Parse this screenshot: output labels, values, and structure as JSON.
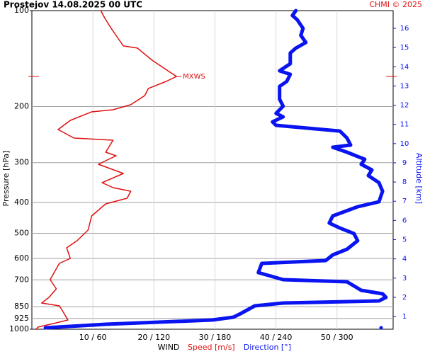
{
  "chart_data": {
    "type": "profile",
    "title": "Prostejov   14.08.2025 00 UTC",
    "credit": "CHMI © 2025",
    "ylabel": "Pressure [hPa]",
    "y2label": "Altitude [km]",
    "xlabel": "WIND",
    "ylim": [
      100,
      1000
    ],
    "ylog": true,
    "yticks": [
      100,
      200,
      300,
      400,
      500,
      600,
      700,
      850,
      925,
      1000
    ],
    "y2lim": [
      0.34,
      16.92
    ],
    "y2ticks": [
      1,
      2,
      3,
      4,
      5,
      6,
      7,
      8,
      9,
      10,
      11,
      12,
      13,
      14,
      15,
      16
    ],
    "xlim": [
      0,
      59.2
    ],
    "x2lim": [
      0,
      355.1
    ],
    "xticks": [
      {
        "value": 10,
        "label": "10 / 60"
      },
      {
        "value": 20,
        "label": "20 / 120"
      },
      {
        "value": 30,
        "label": "30 / 180"
      },
      {
        "value": 40,
        "label": "40 / 240"
      },
      {
        "value": 50,
        "label": "50 / 300"
      }
    ],
    "grid": true,
    "annotation": {
      "text": "MXWS",
      "pressure": 160.9,
      "value": 23.7,
      "color": "#e01010"
    },
    "series": [
      {
        "name": "Speed [m/s]",
        "color": "#e01010",
        "axis": "x",
        "pressure": [
          100,
          105.2,
          113.7,
          122.7,
          129.1,
          131.1,
          143.1,
          154.5,
          160.9,
          166.8,
          175.5,
          184.8,
          197.4,
          204.7,
          207.9,
          221.0,
          236.2,
          251.2,
          255.1,
          278.3,
          285.5,
          303.5,
          324.4,
          346.7,
          359.4,
          368.8,
          388.0,
          404.2,
          441.0,
          488.6,
          527.6,
          555.3,
          599.5,
          621.4,
          698.9,
          746.9,
          794.3,
          827.6,
          844.7,
          893.6,
          935.7,
          955.0,
          984.8,
          1000
        ],
        "values": [
          11.3,
          11.9,
          13.0,
          14.2,
          15.0,
          17.3,
          19.7,
          22.3,
          23.7,
          22.0,
          19.1,
          18.5,
          16.2,
          13.3,
          9.8,
          6.3,
          4.3,
          6.9,
          13.3,
          12.1,
          13.8,
          10.9,
          15.0,
          11.5,
          13.3,
          16.2,
          15.6,
          12.1,
          9.8,
          9.2,
          7.4,
          5.7,
          6.3,
          4.5,
          3.0,
          4.0,
          2.8,
          1.6,
          4.5,
          5.3,
          5.9,
          4.0,
          1.0,
          0.7
        ]
      },
      {
        "name": "Direction [°]",
        "color": "#0a14f0",
        "axis": "x2",
        "pressure": [
          100,
          103.6,
          106.9,
          113.7,
          119.6,
          125.9,
          131.1,
          135.9,
          146.8,
          154.5,
          158.5,
          166.8,
          172.9,
          189.6,
          199.5,
          210.1,
          215.4,
          223.4,
          229.1,
          238.8,
          251.2,
          264.3,
          268.5,
          278.3,
          292.9,
          303.5,
          316.2,
          329.5,
          346.7,
          368.8,
          398.1,
          412.6,
          441.0,
          464.2,
          481.3,
          501.2,
          527.6,
          561.0,
          584.4,
          608.7,
          621.4,
          664.2,
          698.9,
          709.6,
          754.7,
          774.3,
          794.3,
          815.0,
          827.6,
          844.7,
          893.6,
          916.6,
          935.7,
          964.7,
          989.9
        ],
        "values": [
          259.5,
          256.1,
          260.9,
          266.5,
          264.4,
          269.3,
          259.5,
          254.0,
          254.0,
          243.5,
          254.0,
          250.5,
          243.5,
          243.5,
          247.0,
          240.0,
          247.0,
          236.5,
          240.0,
          302.8,
          309.8,
          313.3,
          295.8,
          309.8,
          327.2,
          323.7,
          334.2,
          330.7,
          341.2,
          344.7,
          341.2,
          320.2,
          295.8,
          292.3,
          302.8,
          316.7,
          320.2,
          309.8,
          295.8,
          288.8,
          226.0,
          222.6,
          247.0,
          309.8,
          323.7,
          344.7,
          348.1,
          341.2,
          247.0,
          219.1,
          205.1,
          198.1,
          177.2,
          72.6,
          13.3
        ],
        "surface": {
          "pressure": 990,
          "value": 343.3
        }
      }
    ]
  }
}
